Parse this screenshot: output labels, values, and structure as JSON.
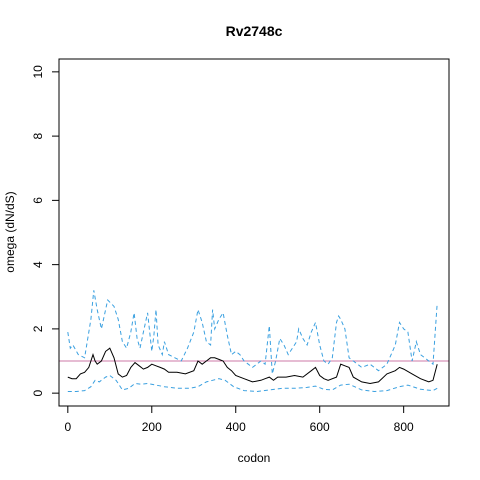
{
  "chart_data": {
    "type": "line",
    "title": "Rv2748c",
    "xlabel": "codon",
    "ylabel": "omega (dN/dS)",
    "xlim": [
      0,
      880
    ],
    "ylim": [
      0,
      10
    ],
    "x_ticks": [
      0,
      200,
      400,
      600,
      800
    ],
    "y_ticks": [
      0,
      2,
      4,
      6,
      8,
      10
    ],
    "grid": false,
    "legend": "none",
    "reference_line": {
      "y": 1,
      "color": "#cc79a7"
    },
    "series": [
      {
        "role": "upper",
        "color": "#3aa0e0",
        "style": "dashed",
        "x": [
          0,
          6,
          12,
          25,
          40,
          55,
          62,
          70,
          80,
          95,
          110,
          120,
          130,
          140,
          150,
          158,
          165,
          172,
          180,
          190,
          200,
          205,
          210,
          215,
          225,
          230,
          240,
          255,
          270,
          285,
          300,
          310,
          320,
          330,
          340,
          345,
          350,
          360,
          370,
          380,
          390,
          400,
          410,
          420,
          430,
          440,
          450,
          460,
          470,
          480,
          487,
          495,
          505,
          515,
          525,
          535,
          545,
          550,
          560,
          570,
          580,
          590,
          600,
          610,
          620,
          630,
          640,
          645,
          650,
          660,
          670,
          680,
          700,
          720,
          740,
          760,
          780,
          790,
          800,
          810,
          820,
          830,
          840,
          850,
          860,
          870,
          880
        ],
        "y": [
          1.9,
          1.4,
          1.5,
          1.2,
          1.1,
          2.3,
          3.2,
          2.6,
          2.0,
          2.9,
          2.7,
          2.3,
          1.6,
          1.4,
          1.9,
          2.5,
          1.7,
          1.4,
          1.9,
          2.5,
          1.3,
          1.8,
          2.6,
          1.5,
          1.2,
          1.6,
          1.2,
          1.1,
          1.0,
          1.4,
          1.9,
          2.6,
          2.2,
          1.6,
          1.5,
          2.6,
          2.0,
          2.3,
          2.5,
          1.8,
          1.2,
          1.3,
          1.2,
          1.0,
          0.9,
          0.8,
          0.9,
          1.0,
          0.9,
          2.1,
          0.6,
          1.0,
          1.7,
          1.5,
          1.2,
          1.4,
          1.6,
          2.0,
          1.7,
          1.5,
          1.9,
          2.2,
          1.5,
          1.0,
          0.9,
          1.1,
          2.2,
          2.4,
          2.3,
          2.0,
          1.1,
          1.0,
          0.8,
          0.9,
          0.7,
          0.9,
          1.5,
          2.2,
          2.0,
          1.9,
          1.0,
          1.6,
          1.2,
          1.1,
          1.0,
          0.9,
          2.8
        ]
      },
      {
        "role": "estimate",
        "color": "#000000",
        "style": "solid",
        "x": [
          0,
          10,
          20,
          30,
          40,
          50,
          60,
          65,
          70,
          80,
          90,
          100,
          110,
          120,
          130,
          140,
          150,
          160,
          170,
          180,
          190,
          200,
          210,
          220,
          230,
          240,
          260,
          280,
          300,
          310,
          320,
          330,
          340,
          350,
          360,
          370,
          380,
          390,
          400,
          420,
          440,
          460,
          470,
          480,
          490,
          500,
          520,
          540,
          560,
          580,
          590,
          600,
          610,
          620,
          640,
          650,
          660,
          670,
          680,
          700,
          720,
          740,
          760,
          780,
          790,
          800,
          820,
          840,
          860,
          870,
          880
        ],
        "y": [
          0.5,
          0.45,
          0.45,
          0.6,
          0.65,
          0.8,
          1.2,
          1.0,
          0.9,
          1.0,
          1.3,
          1.4,
          1.1,
          0.6,
          0.5,
          0.55,
          0.8,
          0.95,
          0.85,
          0.75,
          0.8,
          0.9,
          0.85,
          0.8,
          0.75,
          0.65,
          0.65,
          0.6,
          0.7,
          1.0,
          0.9,
          1.0,
          1.1,
          1.1,
          1.05,
          1.0,
          0.8,
          0.7,
          0.55,
          0.45,
          0.35,
          0.4,
          0.45,
          0.5,
          0.4,
          0.5,
          0.5,
          0.55,
          0.5,
          0.7,
          0.8,
          0.55,
          0.45,
          0.4,
          0.5,
          0.9,
          0.85,
          0.8,
          0.5,
          0.35,
          0.3,
          0.35,
          0.6,
          0.7,
          0.8,
          0.75,
          0.6,
          0.45,
          0.35,
          0.4,
          0.9
        ]
      },
      {
        "role": "lower",
        "color": "#3aa0e0",
        "style": "dashed",
        "x": [
          0,
          20,
          40,
          55,
          65,
          75,
          90,
          100,
          115,
          130,
          145,
          160,
          175,
          190,
          210,
          230,
          260,
          290,
          310,
          330,
          345,
          360,
          375,
          395,
          420,
          450,
          480,
          510,
          540,
          570,
          590,
          610,
          630,
          650,
          670,
          700,
          730,
          760,
          790,
          810,
          840,
          870,
          880
        ],
        "y": [
          0.05,
          0.05,
          0.08,
          0.2,
          0.4,
          0.35,
          0.5,
          0.55,
          0.4,
          0.1,
          0.15,
          0.3,
          0.28,
          0.3,
          0.25,
          0.2,
          0.15,
          0.15,
          0.2,
          0.35,
          0.4,
          0.45,
          0.4,
          0.2,
          0.08,
          0.05,
          0.1,
          0.15,
          0.15,
          0.18,
          0.22,
          0.12,
          0.1,
          0.25,
          0.28,
          0.1,
          0.05,
          0.08,
          0.2,
          0.25,
          0.12,
          0.08,
          0.15
        ]
      }
    ]
  }
}
